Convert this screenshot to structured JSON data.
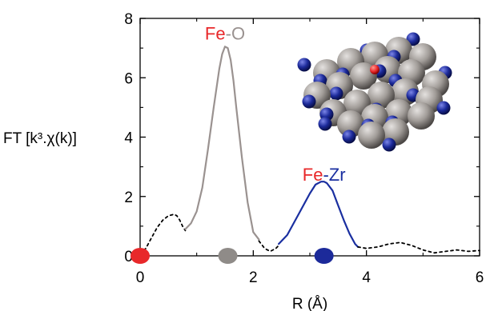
{
  "colors": {
    "fe": "#e8282a",
    "oxygen_label": "#9a9290",
    "fe_o_curve": "#9a9290",
    "fe_zr_curve": "#1a2fa0",
    "zr_label": "#1a2fa0",
    "tail_curve": "#000000",
    "gray_atom": "#8f8b88",
    "blue_atom": "#1c2a9a"
  },
  "chart_data": {
    "type": "line",
    "xlabel": "R (Å)",
    "ylabel": "FT [k³.χ(k)]",
    "xlim": [
      0,
      6
    ],
    "ylim": [
      0,
      8
    ],
    "xticks": [
      "0",
      "2",
      "4",
      "6"
    ],
    "yticks": [
      "0",
      "2",
      "4",
      "6",
      "8"
    ],
    "x_tick_values": [
      0,
      2,
      4,
      6
    ],
    "y_tick_values": [
      0,
      2,
      4,
      6,
      8
    ],
    "series": [
      {
        "style": "dotted",
        "color": "#000000",
        "x": [
          0.0,
          0.1,
          0.2,
          0.3,
          0.4,
          0.5,
          0.6,
          0.65,
          0.7,
          0.75,
          0.8
        ],
        "y": [
          0.05,
          0.25,
          0.6,
          0.95,
          1.2,
          1.35,
          1.4,
          1.35,
          1.2,
          1.0,
          0.85
        ]
      },
      {
        "name": "Fe-O",
        "color": "#9a9290",
        "x": [
          0.8,
          0.9,
          1.0,
          1.1,
          1.2,
          1.3,
          1.4,
          1.45,
          1.5,
          1.55,
          1.6,
          1.65,
          1.7,
          1.8,
          1.9,
          2.0,
          2.1
        ],
        "y": [
          0.9,
          1.1,
          1.5,
          2.3,
          3.6,
          5.0,
          6.3,
          6.8,
          7.05,
          7.0,
          6.6,
          5.9,
          5.0,
          3.3,
          1.8,
          0.8,
          0.55
        ]
      },
      {
        "style": "dotted",
        "color": "#000000",
        "x": [
          2.1,
          2.2,
          2.3,
          2.4,
          2.45
        ],
        "y": [
          0.5,
          0.25,
          0.15,
          0.25,
          0.35
        ]
      },
      {
        "name": "Fe-Zr",
        "color": "#1a2fa0",
        "x": [
          2.45,
          2.6,
          2.8,
          3.0,
          3.1,
          3.2,
          3.25,
          3.3,
          3.4,
          3.5,
          3.6,
          3.7,
          3.8,
          3.85
        ],
        "y": [
          0.4,
          0.7,
          1.4,
          2.1,
          2.4,
          2.5,
          2.5,
          2.45,
          2.2,
          1.7,
          1.2,
          0.75,
          0.4,
          0.3
        ]
      },
      {
        "style": "dotted",
        "color": "#000000",
        "x": [
          3.85,
          4.0,
          4.2,
          4.4,
          4.6,
          4.8,
          5.0,
          5.2,
          5.4,
          5.6,
          5.8,
          6.0
        ],
        "y": [
          0.3,
          0.25,
          0.3,
          0.4,
          0.45,
          0.35,
          0.2,
          0.1,
          0.15,
          0.2,
          0.15,
          0.18
        ]
      }
    ],
    "annotations": [
      {
        "x": 1.5,
        "y": 7.5,
        "parts": [
          {
            "text": "Fe",
            "color": "#e8282a"
          },
          {
            "text": "-",
            "color": "#9a9290"
          },
          {
            "text": "O",
            "color": "#9a9290"
          }
        ]
      },
      {
        "x": 3.25,
        "y": 2.75,
        "parts": [
          {
            "text": "Fe",
            "color": "#e8282a"
          },
          {
            "text": "-",
            "color": "#1a2fa0"
          },
          {
            "text": "Zr",
            "color": "#1a2fa0"
          }
        ]
      }
    ],
    "axis_markers": [
      {
        "x": 0.0,
        "color": "#e8282a"
      },
      {
        "x": 1.55,
        "color": "#8f8b88"
      },
      {
        "x": 3.25,
        "color": "#1c2a9a"
      }
    ]
  }
}
